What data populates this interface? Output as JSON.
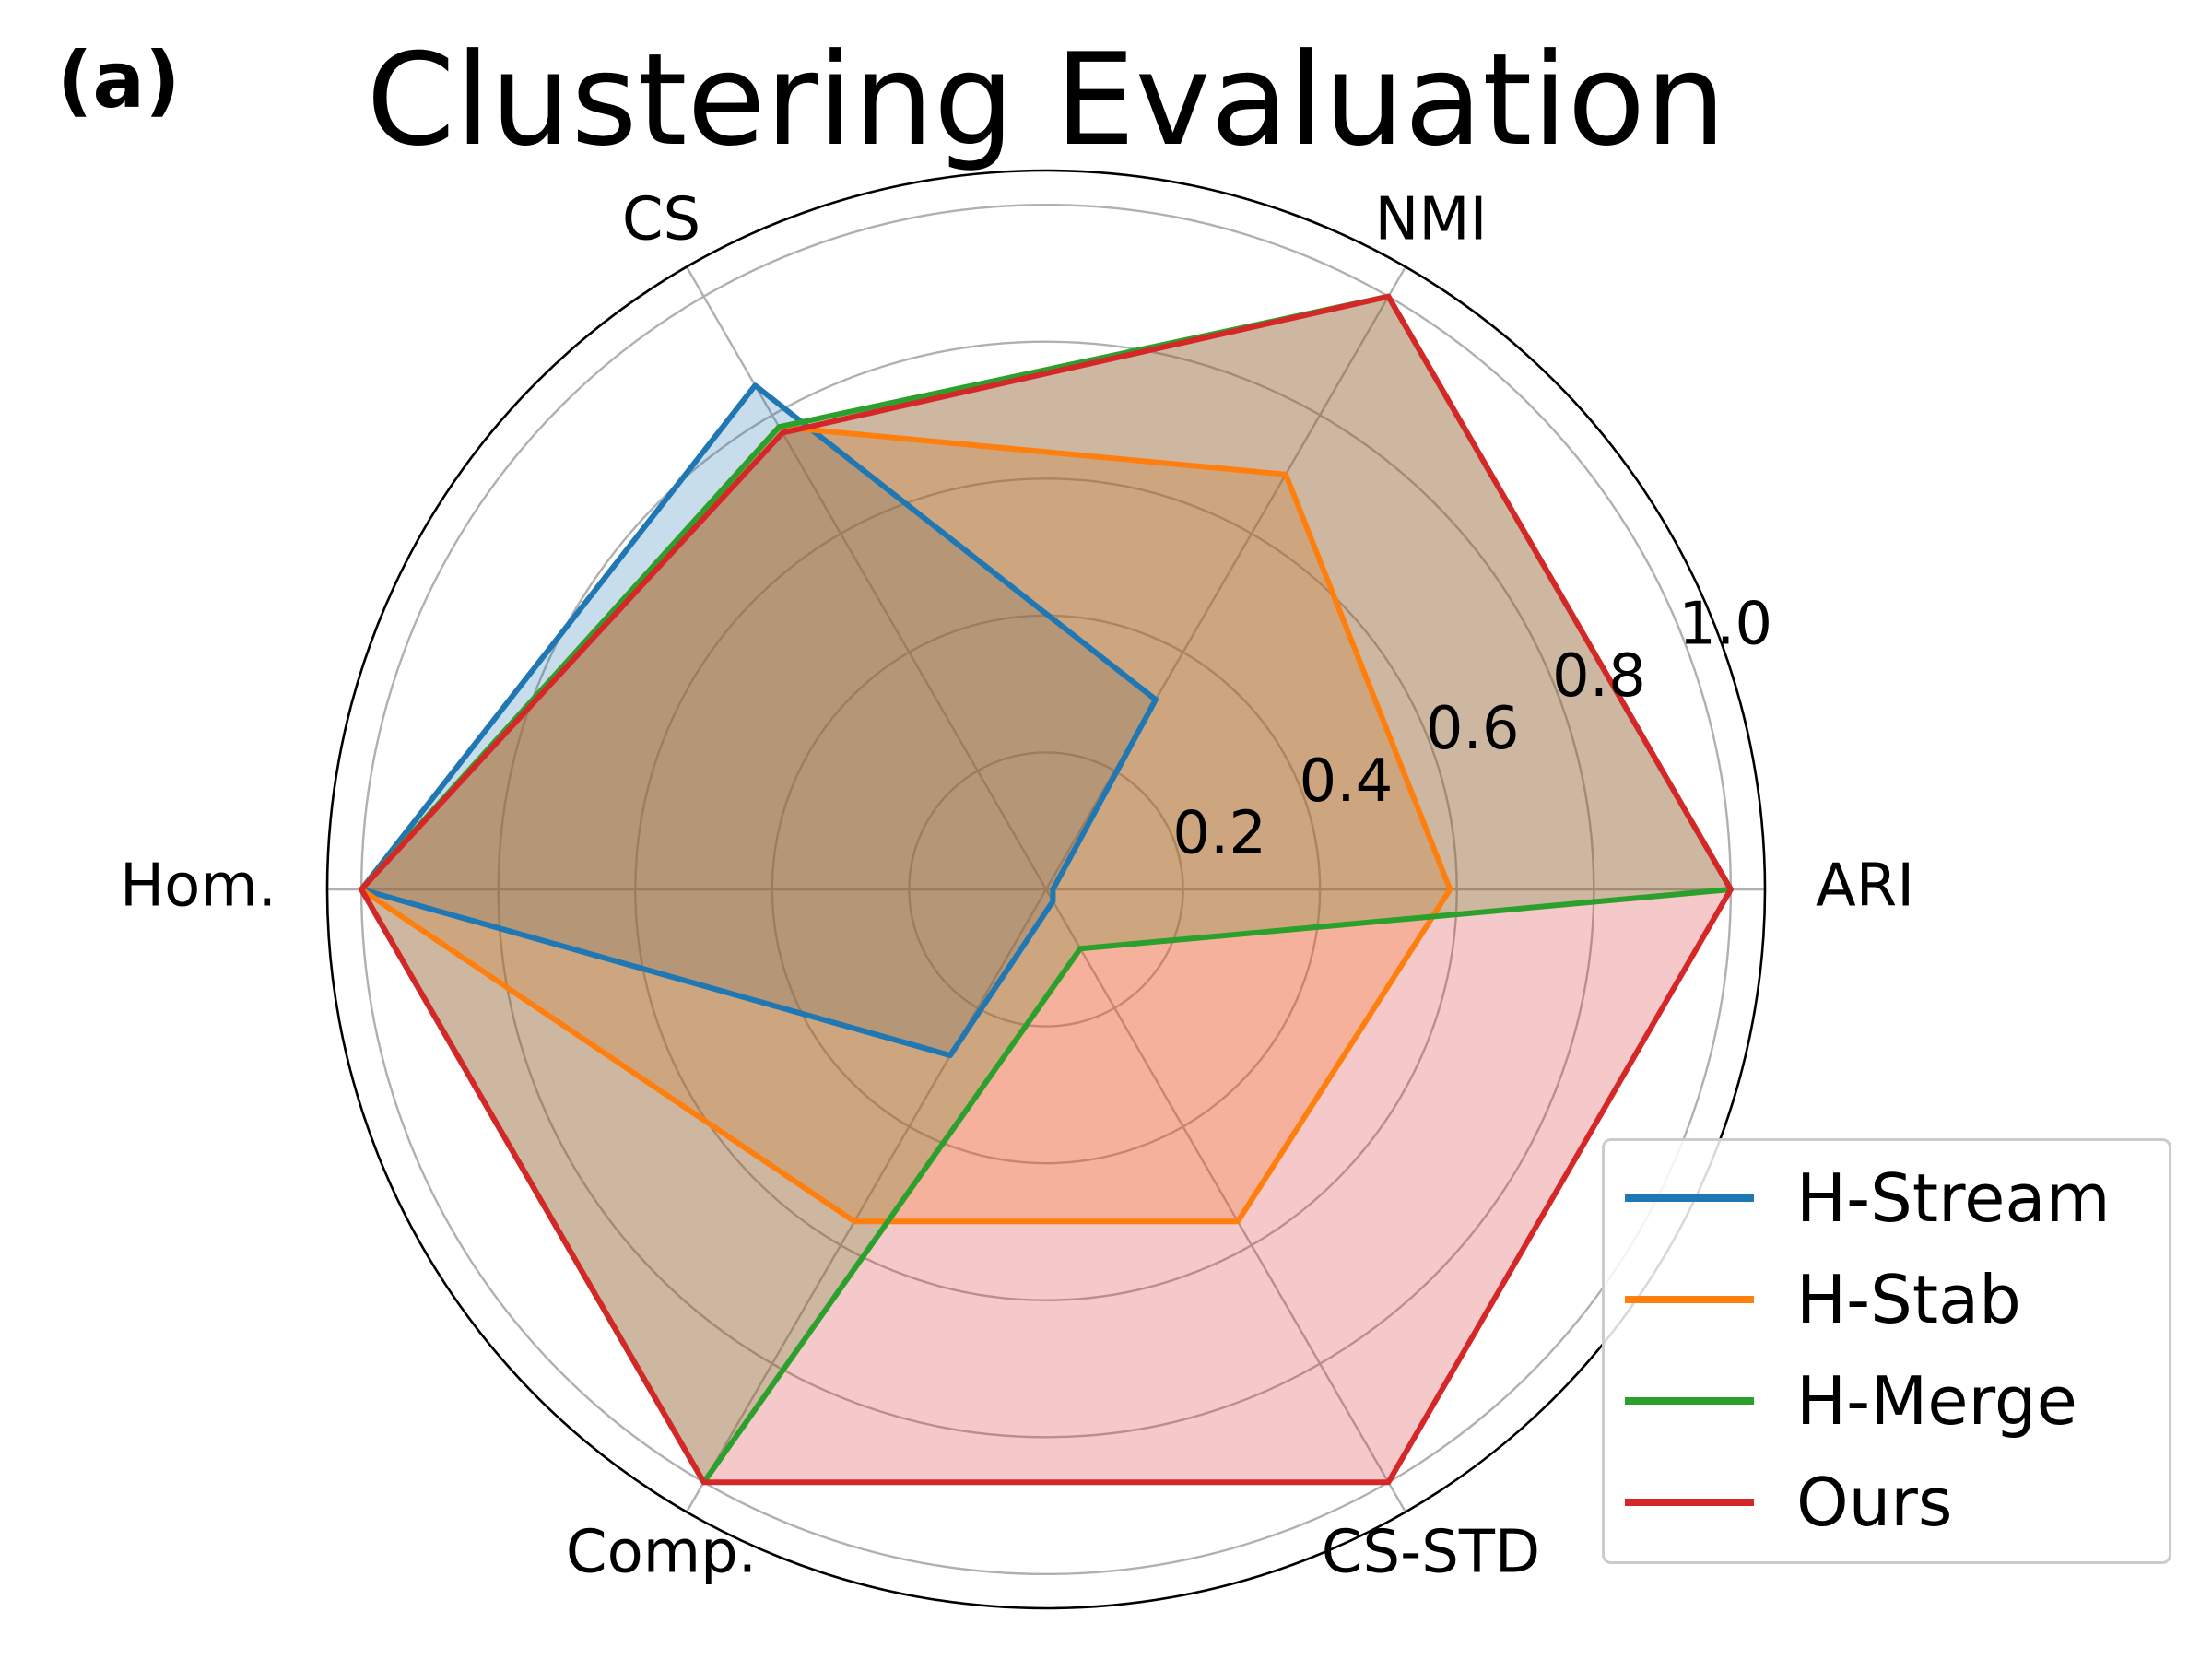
{
  "panel_label": "(a)",
  "chart_data": {
    "type": "radar",
    "title": "Clustering Evaluation",
    "axes": [
      "ARI",
      "NMI",
      "CS",
      "Hom.",
      "Comp.",
      "CS-STD"
    ],
    "rlim": [
      0,
      1.05
    ],
    "rticks": [
      0.2,
      0.4,
      0.6,
      0.8,
      1.0
    ],
    "rtick_labels": [
      "0.2",
      "0.4",
      "0.6",
      "0.8",
      "1.0"
    ],
    "grid": true,
    "legend_position": "lower-right",
    "series": [
      {
        "name": "H-Stream",
        "color": "#1f77b4",
        "values": [
          0.01,
          0.32,
          0.85,
          1.0,
          0.28,
          0.02
        ]
      },
      {
        "name": "H-Stab",
        "color": "#ff7f0e",
        "values": [
          0.59,
          0.7,
          0.78,
          1.0,
          0.56,
          0.56
        ]
      },
      {
        "name": "H-Merge",
        "color": "#2ca02c",
        "values": [
          1.0,
          1.0,
          0.78,
          1.0,
          1.0,
          0.1
        ]
      },
      {
        "name": "Ours",
        "color": "#d62728",
        "values": [
          1.0,
          1.0,
          0.77,
          1.0,
          1.0,
          1.0
        ]
      }
    ]
  }
}
